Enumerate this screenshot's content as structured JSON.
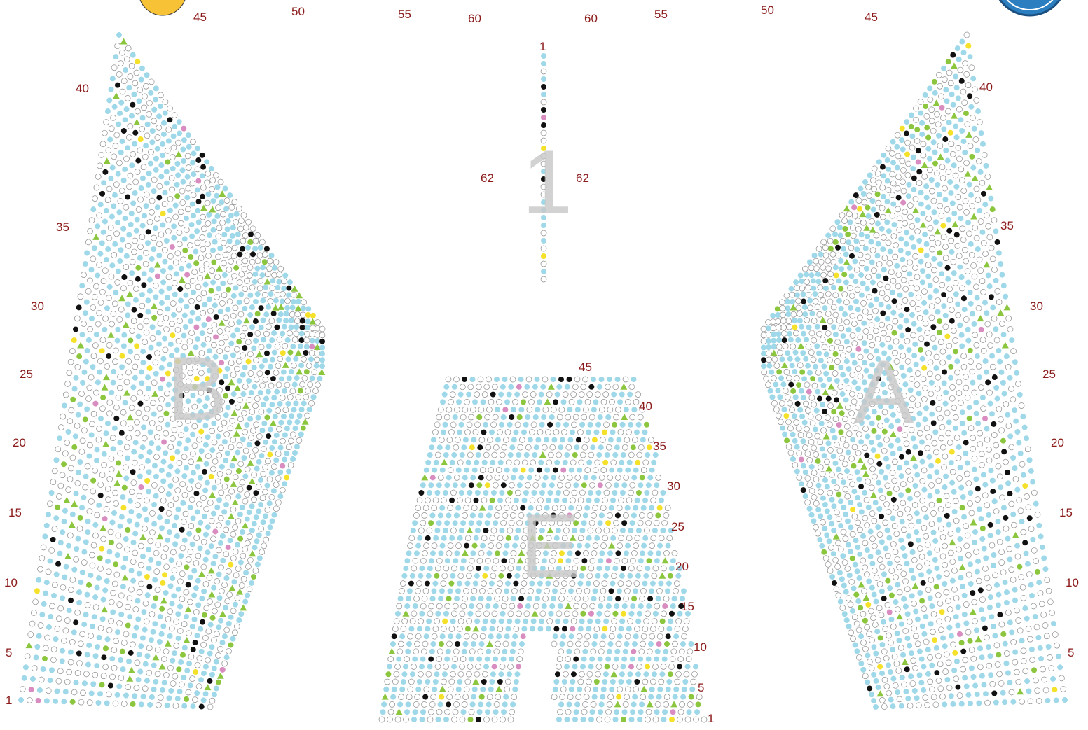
{
  "sections": [
    {
      "id": "A",
      "letter": "A",
      "row_labels": [
        "5",
        "10",
        "15",
        "20",
        "25",
        "30",
        "35",
        "40",
        "45",
        "50",
        "55",
        "60",
        "62"
      ]
    },
    {
      "id": "B",
      "letter": "B",
      "row_labels": [
        "1",
        "5",
        "10",
        "15",
        "20",
        "25",
        "30",
        "35",
        "40",
        "45",
        "50",
        "55",
        "60",
        "62"
      ]
    },
    {
      "id": "E",
      "letter": "E",
      "row_labels": [
        "1",
        "5",
        "10",
        "15",
        "20",
        "25",
        "30",
        "35",
        "40",
        "45"
      ]
    },
    {
      "id": "center-aisle",
      "letter": "1",
      "row_labels": [
        "1"
      ]
    }
  ],
  "legend_colors": {
    "open_seat": "#ffffff",
    "available_seat": "#9fd8e8",
    "sold_seat": "#111111",
    "green_marker": "#8cc63f",
    "yellow_marker": "#f5e12a",
    "pink_marker": "#d98cc0",
    "red_marker": "#e0301e",
    "blue_marker": "#2a4fa8",
    "row_label_color": "#8b1a1a",
    "section_letter_color": "#c8c8c8"
  }
}
